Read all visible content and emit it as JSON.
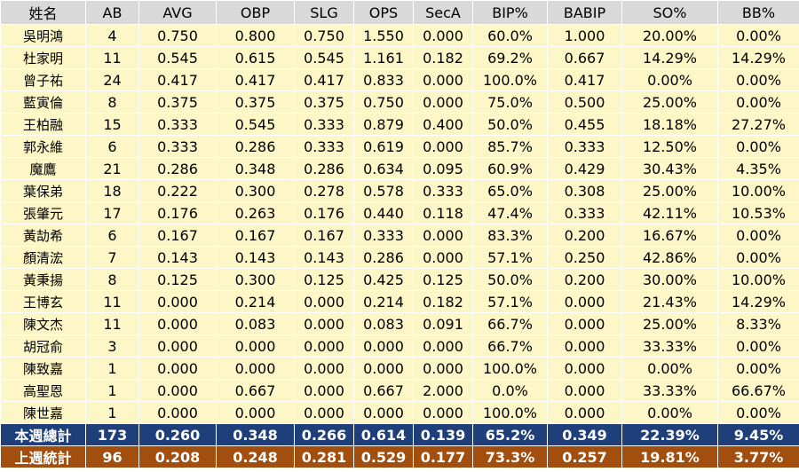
{
  "headers": [
    "姓名",
    "AB",
    "AVG",
    "OBP",
    "SLG",
    "OPS",
    "SecA",
    "BIP%",
    "BABIP",
    "SO%",
    "BB%"
  ],
  "rows": [
    [
      "吳明鴻",
      "4",
      "0.750",
      "0.800",
      "0.750",
      "1.550",
      "0.000",
      "60.0%",
      "1.000",
      "20.00%",
      "0.00%"
    ],
    [
      "杜家明",
      "11",
      "0.545",
      "0.615",
      "0.545",
      "1.161",
      "0.182",
      "69.2%",
      "0.667",
      "14.29%",
      "14.29%"
    ],
    [
      "曾子祐",
      "24",
      "0.417",
      "0.417",
      "0.417",
      "0.833",
      "0.000",
      "100.0%",
      "0.417",
      "0.00%",
      "0.00%"
    ],
    [
      "藍寅倫",
      "8",
      "0.375",
      "0.375",
      "0.375",
      "0.750",
      "0.000",
      "75.0%",
      "0.500",
      "25.00%",
      "0.00%"
    ],
    [
      "王柏融",
      "15",
      "0.333",
      "0.545",
      "0.333",
      "0.879",
      "0.400",
      "50.0%",
      "0.455",
      "18.18%",
      "27.27%"
    ],
    [
      "郭永維",
      "6",
      "0.333",
      "0.286",
      "0.333",
      "0.619",
      "0.000",
      "85.7%",
      "0.333",
      "12.50%",
      "0.00%"
    ],
    [
      "魔鷹",
      "21",
      "0.286",
      "0.348",
      "0.286",
      "0.634",
      "0.095",
      "60.9%",
      "0.429",
      "30.43%",
      "4.35%"
    ],
    [
      "葉保弟",
      "18",
      "0.222",
      "0.300",
      "0.278",
      "0.578",
      "0.333",
      "65.0%",
      "0.308",
      "25.00%",
      "10.00%"
    ],
    [
      "張肇元",
      "17",
      "0.176",
      "0.263",
      "0.176",
      "0.440",
      "0.118",
      "47.4%",
      "0.333",
      "42.11%",
      "10.53%"
    ],
    [
      "黃劼希",
      "6",
      "0.167",
      "0.167",
      "0.167",
      "0.333",
      "0.000",
      "83.3%",
      "0.200",
      "16.67%",
      "0.00%"
    ],
    [
      "顏清浤",
      "7",
      "0.143",
      "0.143",
      "0.143",
      "0.286",
      "0.000",
      "57.1%",
      "0.250",
      "42.86%",
      "0.00%"
    ],
    [
      "黃秉揚",
      "8",
      "0.125",
      "0.300",
      "0.125",
      "0.425",
      "0.125",
      "50.0%",
      "0.200",
      "30.00%",
      "10.00%"
    ],
    [
      "王博玄",
      "11",
      "0.000",
      "0.214",
      "0.000",
      "0.214",
      "0.182",
      "57.1%",
      "0.000",
      "21.43%",
      "14.29%"
    ],
    [
      "陳文杰",
      "11",
      "0.000",
      "0.083",
      "0.000",
      "0.083",
      "0.091",
      "66.7%",
      "0.000",
      "25.00%",
      "8.33%"
    ],
    [
      "胡冠俞",
      "3",
      "0.000",
      "0.000",
      "0.000",
      "0.000",
      "0.000",
      "66.7%",
      "0.000",
      "33.33%",
      "0.00%"
    ],
    [
      "陳致嘉",
      "1",
      "0.000",
      "0.000",
      "0.000",
      "0.000",
      "0.000",
      "100.0%",
      "0.000",
      "0.00%",
      "0.00%"
    ],
    [
      "高聖恩",
      "1",
      "0.000",
      "0.667",
      "0.000",
      "0.667",
      "2.000",
      "0.0%",
      "0.000",
      "33.33%",
      "66.67%"
    ],
    [
      "陳世嘉",
      "1",
      "0.000",
      "0.000",
      "0.000",
      "0.000",
      "0.000",
      "100.0%",
      "0.000",
      "0.00%",
      "0.00%"
    ]
  ],
  "totals": {
    "this_week": [
      "本週總計",
      "173",
      "0.260",
      "0.348",
      "0.266",
      "0.614",
      "0.139",
      "65.2%",
      "0.349",
      "22.39%",
      "9.45%"
    ],
    "last_week": [
      "上週統計",
      "96",
      "0.208",
      "0.248",
      "0.281",
      "0.529",
      "0.177",
      "73.3%",
      "0.257",
      "19.81%",
      "3.77%"
    ]
  },
  "colors": {
    "header_bg": "#d9d9d9",
    "row_bg": "#fdf6c7",
    "this_week_bg": "#1f3f7a",
    "last_week_bg": "#a24e0f"
  }
}
